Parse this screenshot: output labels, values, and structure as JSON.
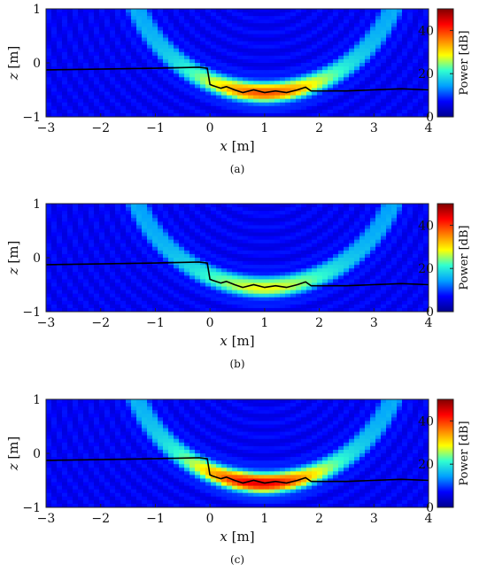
{
  "figure": {
    "panels": [
      {
        "caption": "(a)"
      },
      {
        "caption": "(b)"
      },
      {
        "caption": "(c)"
      }
    ]
  },
  "colors": {
    "colormap": [
      "#00008f",
      "#0000ff",
      "#00a0ff",
      "#30ffd0",
      "#ffff00",
      "#ff8000",
      "#ff0000",
      "#800000"
    ],
    "trace": "#000000",
    "axes": "#222222"
  },
  "chart_data": [
    {
      "type": "heatmap",
      "panel": "(a)",
      "xlabel": "x [m]",
      "ylabel": "z [m]",
      "xlim": [
        -3,
        4
      ],
      "ylim": [
        -1,
        1
      ],
      "xticks": [
        "-3",
        "-2",
        "-1",
        "0",
        "1",
        "2",
        "3",
        "4"
      ],
      "yticks": [
        "-1",
        "0",
        "1"
      ],
      "colorbar": {
        "label": "Power [dB]",
        "range": [
          0,
          50
        ],
        "ticks": [
          "0",
          "20",
          "40"
        ]
      },
      "peak_power": 38,
      "peak_location": {
        "x": 1.0,
        "z": -0.55
      },
      "trace": {
        "x": [
          -3,
          -1.0,
          -0.2,
          -0.05,
          0.0,
          0.05,
          0.2,
          0.3,
          0.45,
          0.6,
          0.8,
          1.0,
          1.2,
          1.4,
          1.6,
          1.75,
          1.85,
          2.0,
          2.5,
          3.0,
          3.5,
          4.0
        ],
        "z": [
          -0.13,
          -0.1,
          -0.08,
          -0.1,
          -0.4,
          -0.42,
          -0.47,
          -0.44,
          -0.5,
          -0.55,
          -0.5,
          -0.55,
          -0.52,
          -0.55,
          -0.5,
          -0.45,
          -0.52,
          -0.52,
          -0.52,
          -0.5,
          -0.48,
          -0.5
        ]
      }
    },
    {
      "type": "heatmap",
      "panel": "(b)",
      "xlabel": "x [m]",
      "ylabel": "z [m]",
      "xlim": [
        -3,
        4
      ],
      "ylim": [
        -1,
        1
      ],
      "xticks": [
        "-3",
        "-2",
        "-1",
        "0",
        "1",
        "2",
        "3",
        "4"
      ],
      "yticks": [
        "-1",
        "0",
        "1"
      ],
      "colorbar": {
        "label": "Power [dB]",
        "range": [
          0,
          50
        ],
        "ticks": [
          "0",
          "20",
          "40"
        ]
      },
      "peak_power": 28,
      "peak_location": {
        "x": 1.0,
        "z": -0.55
      },
      "trace": {
        "x": [
          -3,
          -1.0,
          -0.2,
          -0.05,
          0.0,
          0.05,
          0.2,
          0.3,
          0.45,
          0.6,
          0.8,
          1.0,
          1.2,
          1.4,
          1.6,
          1.75,
          1.85,
          2.0,
          2.5,
          3.0,
          3.5,
          4.0
        ],
        "z": [
          -0.13,
          -0.1,
          -0.08,
          -0.1,
          -0.4,
          -0.42,
          -0.47,
          -0.44,
          -0.5,
          -0.55,
          -0.5,
          -0.55,
          -0.52,
          -0.55,
          -0.5,
          -0.45,
          -0.52,
          -0.52,
          -0.52,
          -0.5,
          -0.48,
          -0.5
        ]
      }
    },
    {
      "type": "heatmap",
      "panel": "(c)",
      "xlabel": "x [m]",
      "ylabel": "z [m]",
      "xlim": [
        -3,
        4
      ],
      "ylim": [
        -1,
        1
      ],
      "xticks": [
        "-3",
        "-2",
        "-1",
        "0",
        "1",
        "2",
        "3",
        "4"
      ],
      "yticks": [
        "-1",
        "0",
        "1"
      ],
      "colorbar": {
        "label": "Power [dB]",
        "range": [
          0,
          50
        ],
        "ticks": [
          "0",
          "20",
          "40"
        ]
      },
      "peak_power": 44,
      "peak_location": {
        "x": 0.9,
        "z": -0.5
      },
      "trace": {
        "x": [
          -3,
          -1.0,
          -0.2,
          -0.05,
          0.0,
          0.05,
          0.2,
          0.3,
          0.45,
          0.6,
          0.8,
          1.0,
          1.2,
          1.4,
          1.6,
          1.75,
          1.85,
          2.0,
          2.5,
          3.0,
          3.5,
          4.0
        ],
        "z": [
          -0.13,
          -0.1,
          -0.08,
          -0.1,
          -0.4,
          -0.42,
          -0.47,
          -0.44,
          -0.5,
          -0.55,
          -0.5,
          -0.55,
          -0.52,
          -0.55,
          -0.5,
          -0.45,
          -0.52,
          -0.52,
          -0.52,
          -0.5,
          -0.48,
          -0.5
        ]
      }
    }
  ]
}
